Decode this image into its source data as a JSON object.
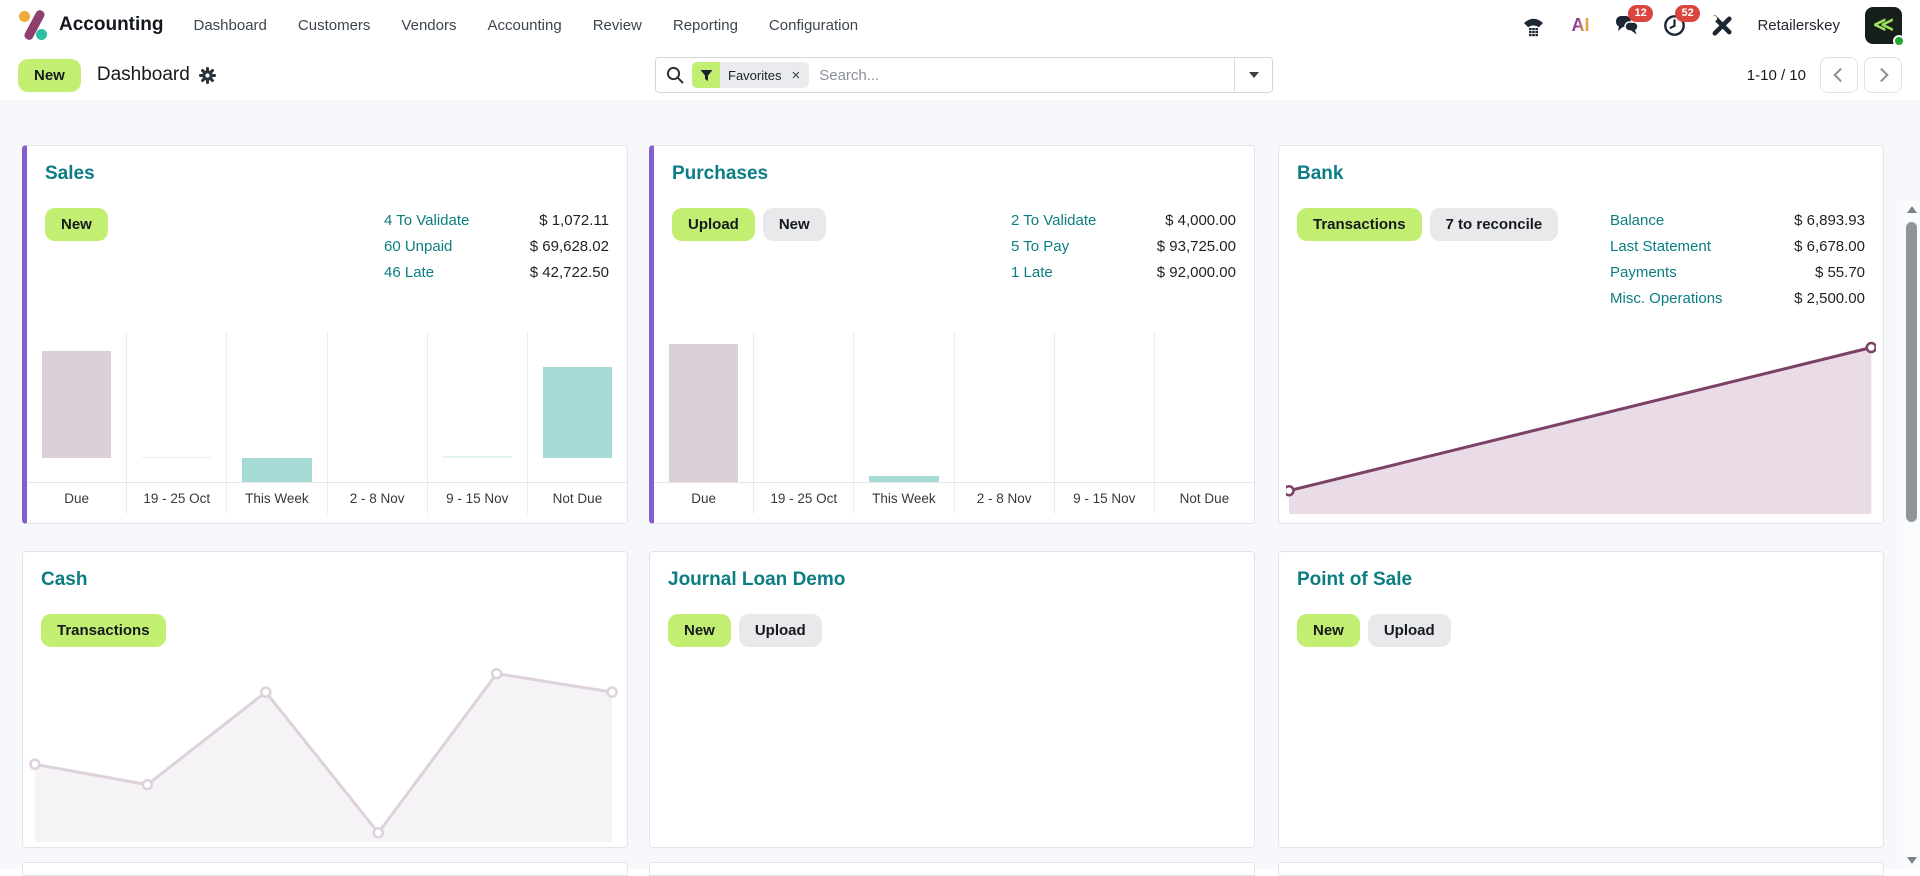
{
  "navbar": {
    "app_name": "Accounting",
    "menu_items": [
      "Dashboard",
      "Customers",
      "Vendors",
      "Accounting",
      "Review",
      "Reporting",
      "Configuration"
    ],
    "systray": {
      "messages_badge": "12",
      "activities_badge": "52",
      "user_name": "Retailerskey"
    }
  },
  "control_panel": {
    "new_label": "New",
    "breadcrumb": "Dashboard",
    "search": {
      "facet_label": "Favorites",
      "placeholder": "Search...",
      "close_glyph": "×"
    },
    "pager": {
      "text": "1-10 / 10"
    }
  },
  "cards": [
    {
      "title": "Sales",
      "accent": true,
      "chart": "sales",
      "buttons": [
        {
          "label": "New",
          "variant": "primary"
        }
      ],
      "kpis": [
        {
          "label": "4 To Validate",
          "value": "$ 1,072.11"
        },
        {
          "label": "60 Unpaid",
          "value": "$ 69,628.02"
        },
        {
          "label": "46 Late",
          "value": "$ 42,722.50"
        }
      ]
    },
    {
      "title": "Purchases",
      "accent": true,
      "chart": "purchases",
      "buttons": [
        {
          "label": "Upload",
          "variant": "primary"
        },
        {
          "label": "New",
          "variant": "secondary"
        }
      ],
      "kpis": [
        {
          "label": "2 To Validate",
          "value": "$ 4,000.00"
        },
        {
          "label": "5 To Pay",
          "value": "$ 93,725.00"
        },
        {
          "label": "1 Late",
          "value": "$ 92,000.00"
        }
      ]
    },
    {
      "title": "Bank",
      "accent": false,
      "chart": "bank",
      "buttons": [
        {
          "label": "Transactions",
          "variant": "primary"
        },
        {
          "label": "7 to reconcile",
          "variant": "secondary"
        }
      ],
      "kpis": [
        {
          "label": "Balance",
          "value": "$ 6,893.93"
        },
        {
          "label": "Last Statement",
          "value": "$ 6,678.00"
        },
        {
          "label": "Payments",
          "value": "$ 55.70"
        },
        {
          "label": "Misc. Operations",
          "value": "$ 2,500.00"
        }
      ]
    },
    {
      "title": "Cash",
      "accent": false,
      "chart": "cash",
      "buttons": [
        {
          "label": "Transactions",
          "variant": "primary"
        }
      ],
      "kpis": []
    },
    {
      "title": "Journal Loan Demo",
      "accent": false,
      "chart": null,
      "buttons": [
        {
          "label": "New",
          "variant": "primary"
        },
        {
          "label": "Upload",
          "variant": "secondary"
        }
      ],
      "kpis": []
    },
    {
      "title": "Point of Sale",
      "accent": false,
      "chart": null,
      "buttons": [
        {
          "label": "New",
          "variant": "primary"
        },
        {
          "label": "Upload",
          "variant": "secondary"
        }
      ],
      "kpis": []
    }
  ],
  "chart_data": [
    {
      "id": "sales",
      "card": "Sales",
      "type": "bar",
      "categories": [
        "Due",
        "19 - 25 Oct",
        "This Week",
        "2 - 8 Nov",
        "9 - 15 Nov",
        "Not Due"
      ],
      "values_pct": [
        71.5,
        1,
        -16,
        0,
        1.5,
        61
      ],
      "baseline_pct": 84,
      "bar_colors": [
        "mauve",
        "mauve_faint",
        "teal",
        "none",
        "teal_faint",
        "teal"
      ],
      "ylabel": "",
      "grid": "vertical-only"
    },
    {
      "id": "purchases",
      "card": "Purchases",
      "type": "bar",
      "categories": [
        "Due",
        "19 - 25 Oct",
        "This Week",
        "2 - 8 Nov",
        "9 - 15 Nov",
        "Not Due"
      ],
      "values_pct": [
        92,
        0,
        4,
        0,
        0,
        0
      ],
      "baseline_pct": 100,
      "bar_colors": [
        "mauve",
        "none",
        "teal",
        "none",
        "none",
        "none"
      ],
      "ylabel": "",
      "grid": "vertical-only"
    },
    {
      "id": "bank",
      "card": "Bank",
      "type": "area",
      "points_pct": [
        [
          0.5,
          87
        ],
        [
          99.2,
          7
        ]
      ],
      "stroke": "#7b4266",
      "fill": "#e9dce6",
      "marker_fill": "#ffffff"
    },
    {
      "id": "cash",
      "card": "Cash",
      "type": "area",
      "points_pct": [
        [
          1,
          58
        ],
        [
          20,
          69
        ],
        [
          40,
          19
        ],
        [
          59,
          95
        ],
        [
          79,
          9
        ],
        [
          98.5,
          19
        ]
      ],
      "stroke": "#ddd2db",
      "fill": "#f6f3f6",
      "marker_fill": "#ffffff"
    }
  ],
  "palette": {
    "mauve": "#dbcfda",
    "mauve_faint": "#f1eaf0",
    "teal": "#a6dad4",
    "teal_faint": "#e2f2f0",
    "accent_purple": "#875ec9",
    "primary_button": "#c2ef72",
    "link_teal": "#0c7d82",
    "badge_red": "#da453e"
  }
}
